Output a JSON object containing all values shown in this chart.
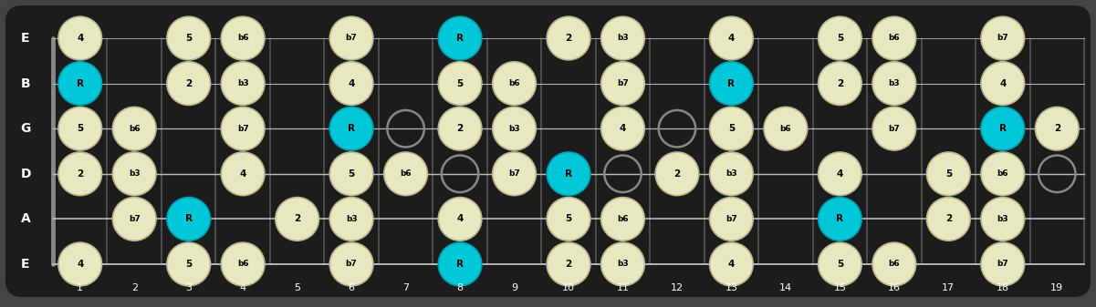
{
  "bg_color": "#444444",
  "fretboard_color": "#1c1c1c",
  "string_color": "#bbbbbb",
  "fret_color": "#555555",
  "nut_color": "#888888",
  "note_fill_cream": "#e8e8c0",
  "note_fill_cyan": "#00c8d8",
  "note_outline_cream": "#b8b890",
  "note_text_color": "#000000",
  "open_circle_color": "#888888",
  "fret_label_color": "#ffffff",
  "string_label_color": "#ffffff",
  "fret_numbers": [
    1,
    2,
    3,
    4,
    5,
    6,
    7,
    8,
    9,
    10,
    11,
    12,
    13,
    14,
    15,
    16,
    17,
    18,
    19
  ],
  "string_names": [
    "E",
    "B",
    "G",
    "D",
    "A",
    "E"
  ],
  "notes": [
    {
      "string": 0,
      "fret": 1,
      "label": "4",
      "type": "cream"
    },
    {
      "string": 0,
      "fret": 3,
      "label": "5",
      "type": "cream"
    },
    {
      "string": 0,
      "fret": 4,
      "label": "b6",
      "type": "cream"
    },
    {
      "string": 0,
      "fret": 6,
      "label": "b7",
      "type": "cream"
    },
    {
      "string": 0,
      "fret": 8,
      "label": "R",
      "type": "cyan"
    },
    {
      "string": 0,
      "fret": 10,
      "label": "2",
      "type": "cream"
    },
    {
      "string": 0,
      "fret": 11,
      "label": "b3",
      "type": "cream"
    },
    {
      "string": 0,
      "fret": 13,
      "label": "4",
      "type": "cream"
    },
    {
      "string": 0,
      "fret": 15,
      "label": "5",
      "type": "cream"
    },
    {
      "string": 0,
      "fret": 16,
      "label": "b6",
      "type": "cream"
    },
    {
      "string": 0,
      "fret": 18,
      "label": "b7",
      "type": "cream"
    },
    {
      "string": 1,
      "fret": 1,
      "label": "R",
      "type": "cyan"
    },
    {
      "string": 1,
      "fret": 3,
      "label": "2",
      "type": "cream"
    },
    {
      "string": 1,
      "fret": 4,
      "label": "b3",
      "type": "cream"
    },
    {
      "string": 1,
      "fret": 6,
      "label": "4",
      "type": "cream"
    },
    {
      "string": 1,
      "fret": 8,
      "label": "5",
      "type": "cream"
    },
    {
      "string": 1,
      "fret": 9,
      "label": "b6",
      "type": "cream"
    },
    {
      "string": 1,
      "fret": 11,
      "label": "b7",
      "type": "cream"
    },
    {
      "string": 1,
      "fret": 13,
      "label": "R",
      "type": "cyan"
    },
    {
      "string": 1,
      "fret": 15,
      "label": "2",
      "type": "cream"
    },
    {
      "string": 1,
      "fret": 16,
      "label": "b3",
      "type": "cream"
    },
    {
      "string": 1,
      "fret": 18,
      "label": "4",
      "type": "cream"
    },
    {
      "string": 2,
      "fret": 1,
      "label": "5",
      "type": "cream"
    },
    {
      "string": 2,
      "fret": 2,
      "label": "b6",
      "type": "cream"
    },
    {
      "string": 2,
      "fret": 4,
      "label": "b7",
      "type": "cream"
    },
    {
      "string": 2,
      "fret": 6,
      "label": "R",
      "type": "cyan"
    },
    {
      "string": 2,
      "fret": 8,
      "label": "2",
      "type": "cream"
    },
    {
      "string": 2,
      "fret": 9,
      "label": "b3",
      "type": "cream"
    },
    {
      "string": 2,
      "fret": 11,
      "label": "4",
      "type": "cream"
    },
    {
      "string": 2,
      "fret": 13,
      "label": "5",
      "type": "cream"
    },
    {
      "string": 2,
      "fret": 14,
      "label": "b6",
      "type": "cream"
    },
    {
      "string": 2,
      "fret": 16,
      "label": "b7",
      "type": "cream"
    },
    {
      "string": 2,
      "fret": 18,
      "label": "R",
      "type": "cyan"
    },
    {
      "string": 2,
      "fret": 19,
      "label": "2",
      "type": "cream"
    },
    {
      "string": 3,
      "fret": 1,
      "label": "2",
      "type": "cream"
    },
    {
      "string": 3,
      "fret": 2,
      "label": "b3",
      "type": "cream"
    },
    {
      "string": 3,
      "fret": 4,
      "label": "4",
      "type": "cream"
    },
    {
      "string": 3,
      "fret": 6,
      "label": "5",
      "type": "cream"
    },
    {
      "string": 3,
      "fret": 7,
      "label": "b6",
      "type": "cream"
    },
    {
      "string": 3,
      "fret": 9,
      "label": "b7",
      "type": "cream"
    },
    {
      "string": 3,
      "fret": 10,
      "label": "R",
      "type": "cyan"
    },
    {
      "string": 3,
      "fret": 12,
      "label": "2",
      "type": "cream"
    },
    {
      "string": 3,
      "fret": 13,
      "label": "b3",
      "type": "cream"
    },
    {
      "string": 3,
      "fret": 15,
      "label": "4",
      "type": "cream"
    },
    {
      "string": 3,
      "fret": 17,
      "label": "5",
      "type": "cream"
    },
    {
      "string": 3,
      "fret": 18,
      "label": "b6",
      "type": "cream"
    },
    {
      "string": 4,
      "fret": 2,
      "label": "b7",
      "type": "cream"
    },
    {
      "string": 4,
      "fret": 3,
      "label": "R",
      "type": "cyan"
    },
    {
      "string": 4,
      "fret": 5,
      "label": "2",
      "type": "cream"
    },
    {
      "string": 4,
      "fret": 6,
      "label": "b3",
      "type": "cream"
    },
    {
      "string": 4,
      "fret": 8,
      "label": "4",
      "type": "cream"
    },
    {
      "string": 4,
      "fret": 10,
      "label": "5",
      "type": "cream"
    },
    {
      "string": 4,
      "fret": 11,
      "label": "b6",
      "type": "cream"
    },
    {
      "string": 4,
      "fret": 13,
      "label": "b7",
      "type": "cream"
    },
    {
      "string": 4,
      "fret": 15,
      "label": "R",
      "type": "cyan"
    },
    {
      "string": 4,
      "fret": 17,
      "label": "2",
      "type": "cream"
    },
    {
      "string": 4,
      "fret": 18,
      "label": "b3",
      "type": "cream"
    },
    {
      "string": 5,
      "fret": 1,
      "label": "4",
      "type": "cream"
    },
    {
      "string": 5,
      "fret": 3,
      "label": "5",
      "type": "cream"
    },
    {
      "string": 5,
      "fret": 4,
      "label": "b6",
      "type": "cream"
    },
    {
      "string": 5,
      "fret": 6,
      "label": "b7",
      "type": "cream"
    },
    {
      "string": 5,
      "fret": 8,
      "label": "R",
      "type": "cyan"
    },
    {
      "string": 5,
      "fret": 10,
      "label": "2",
      "type": "cream"
    },
    {
      "string": 5,
      "fret": 11,
      "label": "b3",
      "type": "cream"
    },
    {
      "string": 5,
      "fret": 13,
      "label": "4",
      "type": "cream"
    },
    {
      "string": 5,
      "fret": 15,
      "label": "5",
      "type": "cream"
    },
    {
      "string": 5,
      "fret": 16,
      "label": "b6",
      "type": "cream"
    },
    {
      "string": 5,
      "fret": 18,
      "label": "b7",
      "type": "cream"
    }
  ],
  "open_circles": [
    {
      "string": 2,
      "fret": 7
    },
    {
      "string": 2,
      "fret": 9
    },
    {
      "string": 2,
      "fret": 12
    },
    {
      "string": 3,
      "fret": 8
    },
    {
      "string": 3,
      "fret": 11
    },
    {
      "string": 3,
      "fret": 19
    }
  ]
}
